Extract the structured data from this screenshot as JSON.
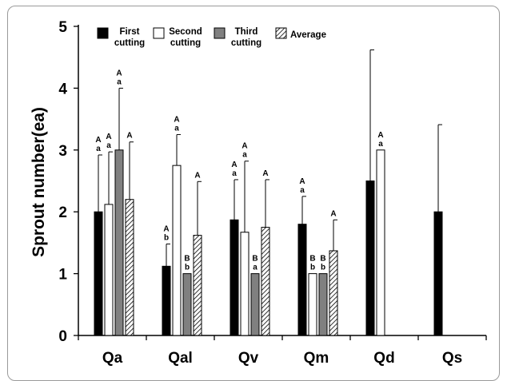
{
  "chart_data": {
    "type": "bar",
    "categories": [
      "Qa",
      "Qal",
      "Qv",
      "Qm",
      "Qd",
      "Qs"
    ],
    "ylabel": "Sprout number(ea)",
    "xlabel": "",
    "ylim": [
      0,
      5
    ],
    "yticks": [
      "0",
      "1",
      "2",
      "3",
      "4",
      "5"
    ],
    "legend_position": "top-left",
    "series": [
      {
        "name": "First cutting",
        "fill": "#000000",
        "pattern": "solid",
        "values": [
          2.0,
          1.12,
          1.87,
          1.8,
          2.5,
          2.0
        ],
        "errors": [
          0.92,
          0.36,
          0.65,
          0.45,
          2.12,
          1.41
        ],
        "labels": [
          [
            "A",
            "a"
          ],
          [
            "A",
            "b"
          ],
          [
            "A",
            "a"
          ],
          [
            "A",
            "a"
          ],
          [
            "",
            ""
          ],
          [
            "",
            ""
          ]
        ]
      },
      {
        "name": "Second cutting",
        "fill": "#ffffff",
        "pattern": "solid",
        "values": [
          2.12,
          2.75,
          1.67,
          1.0,
          3.0,
          null
        ],
        "errors": [
          0.85,
          0.5,
          1.15,
          0.0,
          0.0,
          null
        ],
        "labels": [
          [
            "A",
            "a"
          ],
          [
            "A",
            "a"
          ],
          [
            "A",
            "a"
          ],
          [
            "B",
            "b"
          ],
          [
            "A",
            "a"
          ],
          [
            "",
            ""
          ]
        ]
      },
      {
        "name": "Third cutting",
        "fill": "#808080",
        "pattern": "solid",
        "values": [
          3.0,
          1.0,
          1.0,
          1.0,
          null,
          null
        ],
        "errors": [
          1.0,
          0.0,
          0.0,
          0.0,
          null,
          null
        ],
        "labels": [
          [
            "A",
            "a"
          ],
          [
            "B",
            "b"
          ],
          [
            "B",
            "a"
          ],
          [
            "B",
            "b"
          ],
          [
            "",
            ""
          ],
          [
            "",
            ""
          ]
        ]
      },
      {
        "name": "Average",
        "fill": "#ffffff",
        "pattern": "hatched",
        "values": [
          2.2,
          1.62,
          1.75,
          1.37,
          null,
          null
        ],
        "errors": [
          0.93,
          0.87,
          0.77,
          0.5,
          null,
          null
        ],
        "labels": [
          [
            "A"
          ],
          [
            "A"
          ],
          [
            "A"
          ],
          [
            "A"
          ],
          [],
          []
        ]
      }
    ],
    "legend": [
      {
        "line1": "First",
        "line2": "cutting"
      },
      {
        "line1": "Second",
        "line2": "cutting"
      },
      {
        "line1": "Third",
        "line2": "cutting"
      },
      {
        "line1": "Average",
        "line2": ""
      }
    ]
  }
}
